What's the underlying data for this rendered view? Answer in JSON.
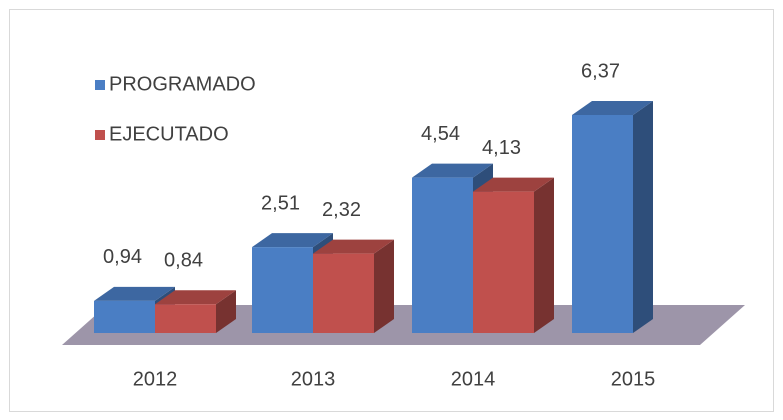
{
  "chart_data": {
    "type": "bar3d",
    "categories": [
      "2012",
      "2013",
      "2014",
      "2015"
    ],
    "series": [
      {
        "name": "PROGRAMADO",
        "color": "#4a7ec4",
        "values": [
          0.94,
          2.51,
          4.54,
          6.37
        ],
        "value_labels": [
          "0,94",
          "2,51",
          "4,54",
          "6,37"
        ]
      },
      {
        "name": "EJECUTADO",
        "color": "#c0504d",
        "values": [
          0.84,
          2.32,
          4.13,
          null
        ],
        "value_labels": [
          "0,84",
          "2,32",
          "4,13",
          null
        ]
      }
    ],
    "legend": "top-left"
  }
}
